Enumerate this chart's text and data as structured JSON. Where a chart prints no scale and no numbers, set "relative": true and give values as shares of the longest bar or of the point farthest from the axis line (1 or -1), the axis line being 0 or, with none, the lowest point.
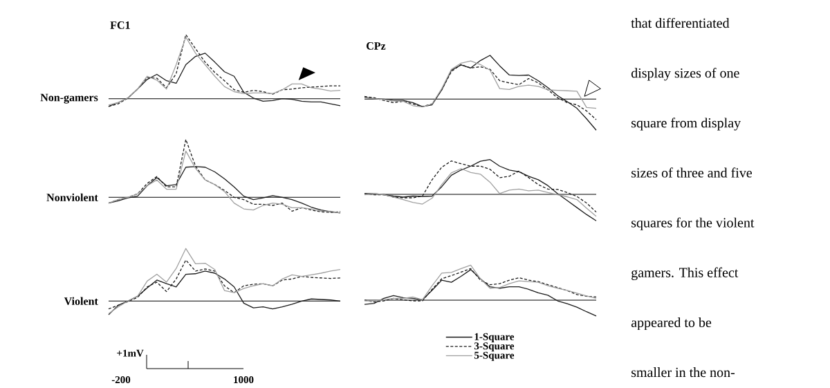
{
  "chart_data": [
    {
      "type": "line",
      "title": "FC1",
      "ylabel": "Non-gamers",
      "relative": true,
      "categories": [
        null,
        null,
        null,
        null,
        null,
        null,
        null,
        null,
        null,
        null,
        null,
        null,
        null,
        null,
        null,
        null,
        null,
        null,
        null,
        null,
        null,
        null,
        null,
        null,
        null
      ],
      "series": [
        {
          "color": "#1a1a1a",
          "line_style": "solid",
          "values": [
            -0.12,
            -0.06,
            0.01,
            0.15,
            0.3,
            0.38,
            0.28,
            0.24,
            0.53,
            0.66,
            0.71,
            0.57,
            0.42,
            0.35,
            0.1,
            0.01,
            -0.04,
            -0.03,
            0,
            -0.01,
            -0.04,
            -0.05,
            -0.05,
            -0.08,
            -0.11
          ]
        },
        {
          "color": "#1a1a1a",
          "line_style": "dashed",
          "values": [
            -0.12,
            -0.08,
            0.01,
            0.15,
            0.33,
            0.32,
            0.17,
            0.39,
            1.0,
            0.78,
            0.57,
            0.41,
            0.28,
            0.14,
            0.1,
            0.13,
            0.11,
            0.07,
            0.14,
            0.15,
            0.17,
            0.18,
            0.19,
            0.2,
            0.2
          ]
        },
        {
          "color": "#a0a0a0",
          "line_style": "solid",
          "values": [
            -0.1,
            -0.06,
            0.01,
            0.15,
            0.35,
            0.29,
            0.15,
            0.53,
            0.96,
            0.71,
            0.53,
            0.35,
            0.19,
            0.11,
            0.08,
            0.09,
            0.09,
            0.08,
            0.14,
            0.23,
            0.23,
            0.17,
            0.15,
            0.12,
            0.13
          ]
        }
      ]
    },
    {
      "type": "line",
      "title": "CPz",
      "relative": true,
      "categories": [
        null,
        null,
        null,
        null,
        null,
        null,
        null,
        null,
        null,
        null,
        null,
        null,
        null,
        null,
        null,
        null,
        null,
        null,
        null,
        null,
        null,
        null,
        null,
        null,
        null
      ],
      "series": [
        {
          "color": "#1a1a1a",
          "line_style": "solid",
          "values": [
            0.04,
            0.01,
            0,
            -0.03,
            -0.03,
            -0.08,
            -0.17,
            -0.13,
            0.21,
            0.66,
            0.78,
            0.71,
            0.88,
            1.0,
            0.76,
            0.55,
            0.54,
            0.55,
            0.42,
            0.26,
            0.08,
            -0.06,
            -0.21,
            -0.45,
            -0.71
          ]
        },
        {
          "color": "#1a1a1a",
          "line_style": "dashed",
          "values": [
            0.06,
            0.03,
            -0.03,
            -0.08,
            -0.05,
            -0.11,
            -0.17,
            -0.11,
            0.21,
            0.63,
            0.79,
            0.71,
            0.74,
            0.68,
            0.42,
            0.37,
            0.33,
            0.47,
            0.37,
            0.21,
            0.03,
            -0.08,
            -0.13,
            -0.27,
            -0.47
          ]
        },
        {
          "color": "#a0a0a0",
          "line_style": "solid",
          "values": [
            0.03,
            0.01,
            -0.01,
            -0.04,
            -0.05,
            -0.15,
            -0.18,
            -0.11,
            0.24,
            0.68,
            0.82,
            0.87,
            0.79,
            0.66,
            0.24,
            0.22,
            0.29,
            0.32,
            0.29,
            0.21,
            0.2,
            0.19,
            0.18,
            -0.19,
            -0.21
          ]
        }
      ]
    },
    {
      "type": "line",
      "ylabel": "Nonviolent",
      "relative": true,
      "categories": [
        null,
        null,
        null,
        null,
        null,
        null,
        null,
        null,
        null,
        null,
        null,
        null,
        null,
        null,
        null,
        null,
        null,
        null,
        null,
        null,
        null,
        null,
        null,
        null,
        null
      ],
      "series": [
        {
          "color": "#1a1a1a",
          "line_style": "solid",
          "values": [
            -0.1,
            -0.06,
            -0.01,
            0.02,
            0.2,
            0.34,
            0.2,
            0.22,
            0.52,
            0.53,
            0.52,
            0.44,
            0.32,
            0.18,
            0.02,
            -0.04,
            -0.01,
            0.03,
            0,
            -0.04,
            -0.1,
            -0.17,
            -0.22,
            -0.25,
            -0.27
          ]
        },
        {
          "color": "#1a1a1a",
          "line_style": "dashed",
          "values": [
            -0.1,
            -0.04,
            0,
            0.06,
            0.24,
            0.36,
            0.18,
            0.18,
            1.0,
            0.54,
            0.3,
            0.22,
            0.12,
            0,
            -0.04,
            -0.12,
            -0.12,
            -0.14,
            -0.1,
            -0.24,
            -0.18,
            -0.22,
            -0.25,
            -0.26,
            -0.25
          ]
        },
        {
          "color": "#a0a0a0",
          "line_style": "solid",
          "values": [
            -0.1,
            -0.04,
            0,
            0.06,
            0.2,
            0.3,
            0.14,
            0.14,
            0.8,
            0.5,
            0.3,
            0.22,
            0.1,
            -0.1,
            -0.2,
            -0.22,
            -0.14,
            -0.1,
            -0.12,
            -0.18,
            -0.18,
            -0.2,
            -0.24,
            -0.24,
            -0.27
          ]
        }
      ]
    },
    {
      "type": "line",
      "relative": true,
      "categories": [
        null,
        null,
        null,
        null,
        null,
        null,
        null,
        null,
        null,
        null,
        null,
        null,
        null,
        null,
        null,
        null,
        null,
        null,
        null,
        null,
        null,
        null,
        null,
        null,
        null
      ],
      "series": [
        {
          "color": "#1a1a1a",
          "line_style": "solid",
          "values": [
            0.02,
            0.02,
            -0.01,
            -0.05,
            -0.08,
            -0.05,
            -0.06,
            -0.05,
            0.22,
            0.55,
            0.7,
            0.81,
            0.95,
            1.0,
            0.81,
            0.7,
            0.65,
            0.52,
            0.42,
            0.25,
            0.02,
            -0.18,
            -0.38,
            -0.58,
            -0.76
          ]
        },
        {
          "color": "#1a1a1a",
          "line_style": "dashed",
          "values": [
            0.02,
            -0.01,
            -0.01,
            -0.08,
            -0.1,
            -0.1,
            -0.05,
            0.42,
            0.78,
            0.96,
            0.88,
            0.81,
            0.81,
            0.72,
            0.48,
            0.52,
            0.67,
            0.48,
            0.28,
            0.15,
            0.14,
            0.05,
            -0.06,
            -0.25,
            -0.51
          ]
        },
        {
          "color": "#a0a0a0",
          "line_style": "solid",
          "values": [
            -0.01,
            0.02,
            -0.01,
            -0.08,
            -0.15,
            -0.23,
            -0.28,
            -0.11,
            0.28,
            0.62,
            0.74,
            0.63,
            0.58,
            0.35,
            0.02,
            0.12,
            0.15,
            0.1,
            0.12,
            0.05,
            -0.01,
            -0.07,
            -0.15,
            -0.4,
            -0.63
          ]
        }
      ]
    },
    {
      "type": "line",
      "ylabel": "Violent",
      "relative": true,
      "annotations": [
        "+1mV",
        "-200",
        "1000"
      ],
      "categories": [
        null,
        null,
        null,
        null,
        null,
        null,
        null,
        null,
        null,
        null,
        null,
        null,
        null,
        null,
        null,
        null,
        null,
        null,
        null,
        null,
        null,
        null,
        null,
        null,
        null
      ],
      "series": [
        {
          "color": "#1a1a1a",
          "line_style": "solid",
          "values": [
            -0.26,
            -0.08,
            0,
            0.09,
            0.25,
            0.4,
            0.33,
            0.27,
            0.51,
            0.52,
            0.57,
            0.53,
            0.42,
            0.27,
            -0.04,
            -0.13,
            -0.11,
            -0.15,
            -0.11,
            -0.06,
            0,
            0.04,
            0.03,
            0.02,
            0
          ]
        },
        {
          "color": "#1a1a1a",
          "line_style": "dashed",
          "values": [
            -0.15,
            -0.08,
            -0.01,
            0.07,
            0.27,
            0.36,
            0.18,
            0.42,
            0.78,
            0.57,
            0.61,
            0.57,
            0.29,
            0.16,
            0.29,
            0.32,
            0.33,
            0.29,
            0.4,
            0.42,
            0.47,
            0.45,
            0.44,
            0.43,
            0.44
          ]
        },
        {
          "color": "#a0a0a0",
          "line_style": "solid",
          "values": [
            -0.24,
            -0.11,
            0,
            0.09,
            0.38,
            0.51,
            0.36,
            0.62,
            1.0,
            0.71,
            0.72,
            0.6,
            0.2,
            0.16,
            0.24,
            0.29,
            0.33,
            0.29,
            0.42,
            0.5,
            0.47,
            0.5,
            0.53,
            0.57,
            0.6
          ]
        }
      ]
    },
    {
      "type": "line",
      "relative": true,
      "legend": "bottom",
      "categories": [
        null,
        null,
        null,
        null,
        null,
        null,
        null,
        null,
        null,
        null,
        null,
        null,
        null,
        null,
        null,
        null,
        null,
        null,
        null,
        null,
        null,
        null,
        null,
        null,
        null
      ],
      "series": [
        {
          "name": "1-Square",
          "color": "#1a1a1a",
          "line_style": "solid",
          "values": [
            -0.12,
            -0.09,
            0.05,
            0.13,
            0.07,
            0.05,
            0.01,
            0.28,
            0.57,
            0.51,
            0.68,
            0.87,
            0.61,
            0.38,
            0.34,
            0.38,
            0.38,
            0.31,
            0.21,
            0.14,
            -0.02,
            -0.1,
            -0.2,
            -0.33,
            -0.45
          ]
        },
        {
          "name": "3-Square",
          "color": "#1a1a1a",
          "line_style": "dashed",
          "values": [
            0,
            -0.05,
            -0.02,
            0.05,
            0.01,
            -0.02,
            -0.02,
            0.31,
            0.61,
            0.7,
            0.8,
            0.9,
            0.57,
            0.44,
            0.47,
            0.57,
            0.64,
            0.57,
            0.53,
            0.44,
            0.36,
            0.27,
            0.16,
            0.11,
            0.09
          ]
        },
        {
          "name": "5-Square",
          "color": "#a0a0a0",
          "line_style": "solid",
          "values": [
            -0.02,
            -0.02,
            0.01,
            0.05,
            0.05,
            0.09,
            0.01,
            0.41,
            0.77,
            0.79,
            0.9,
            1.0,
            0.61,
            0.34,
            0.36,
            0.47,
            0.55,
            0.53,
            0.51,
            0.41,
            0.34,
            0.28,
            0.2,
            0.12,
            0.05
          ]
        }
      ]
    },
    {
      "type": "other",
      "annotations": [
        "that differentiated",
        "display sizes of one",
        "square from display",
        "sizes of three and five",
        "squares for the violent",
        "gamers. This effect",
        "appeared to be",
        "smaller in the non-"
      ]
    }
  ]
}
